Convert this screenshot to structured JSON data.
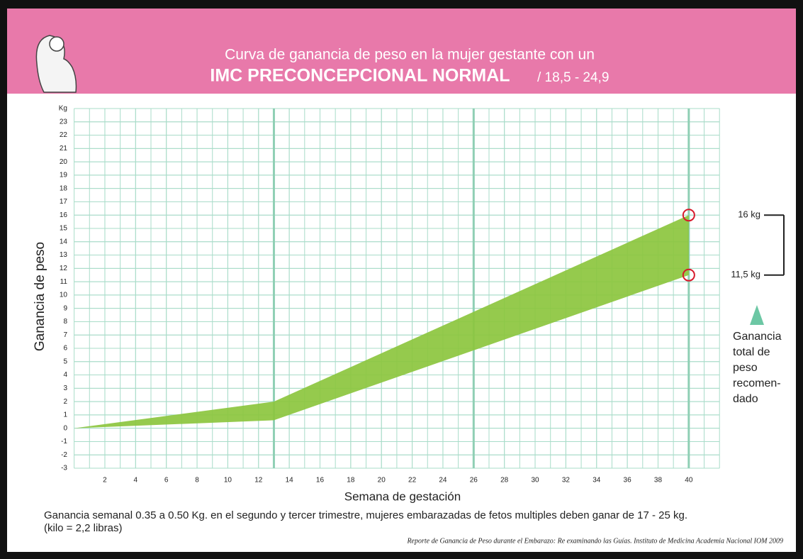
{
  "header": {
    "title_line1": "Curva de ganancia de peso en la mujer gestante con un",
    "title_line2": "IMC PRECONCEPCIONAL NORMAL",
    "title_range": "/ 18,5 - 24,9"
  },
  "chart_data": {
    "type": "band",
    "y_label": "Ganancia de peso",
    "x_label": "Semana de gestación",
    "x": [
      0,
      13,
      40
    ],
    "lower": [
      0,
      0.6,
      11.5
    ],
    "upper": [
      0,
      2,
      16
    ],
    "color": "#8cc63e",
    "xlim": [
      0,
      42
    ],
    "ylim": [
      -3,
      24
    ],
    "xticks": [
      2,
      4,
      6,
      8,
      10,
      12,
      14,
      16,
      18,
      20,
      22,
      24,
      26,
      28,
      30,
      32,
      34,
      36,
      38,
      40
    ],
    "yticks": [
      -3,
      -2,
      -1,
      0,
      1,
      2,
      3,
      4,
      5,
      6,
      7,
      8,
      9,
      10,
      11,
      12,
      13,
      14,
      15,
      16,
      17,
      18,
      19,
      20,
      21,
      22,
      23,
      {
        "value": 24,
        "label": "Kg"
      }
    ],
    "grid": true,
    "minor_grid": true,
    "grid_color": "#a9dcc9",
    "trimester_lines": [
      13,
      26,
      40
    ],
    "markers": [
      {
        "x": 40,
        "y": 16,
        "label": "16 kg"
      },
      {
        "x": 40,
        "y": 11.5,
        "label": "11,5 kg"
      }
    ],
    "marker_color": "#d7192a",
    "side_note": [
      "Ganancia",
      "total de",
      "peso",
      "recomen-",
      "dado"
    ]
  },
  "footer": {
    "note": "Ganancia semanal 0.35 a 0.50 Kg. en el segundo y tercer trimestre, mujeres embarazadas de fetos multiples deben ganar de 17 - 25 kg.",
    "conversion": "(kilo = 2,2 libras)",
    "source": "Reporte de Ganancia de Peso durante el Embarazo: Re examinando las Guías. Instituto de Medicina Academia Nacional IOM 2009"
  }
}
